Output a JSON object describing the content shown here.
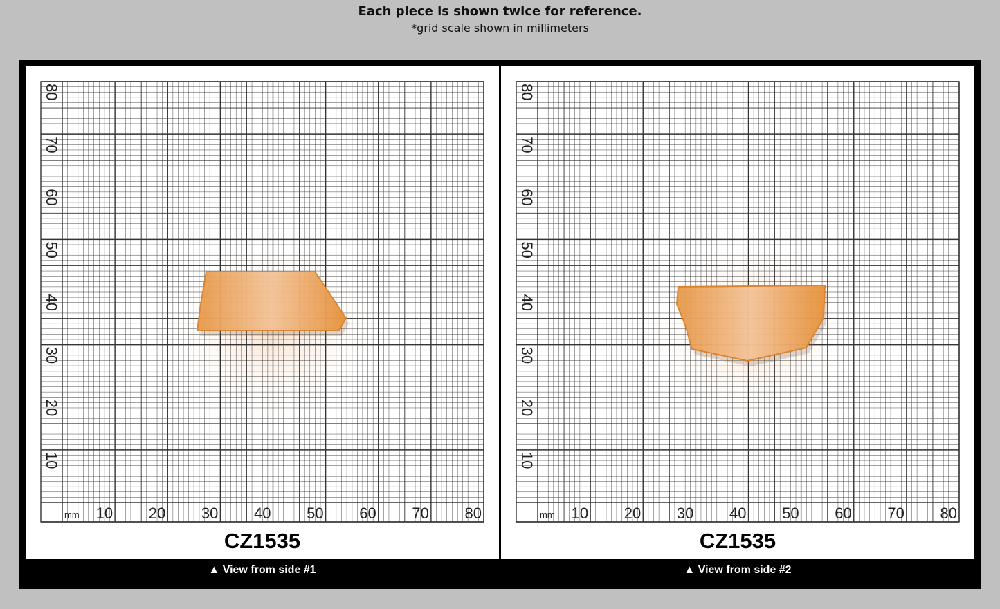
{
  "header": {
    "title": "Each piece is shown twice for reference.",
    "subtitle": "*grid scale shown in millimeters"
  },
  "panels": [
    {
      "unit": "mm",
      "x_scale": [
        10,
        20,
        30,
        40,
        50,
        60,
        70,
        80
      ],
      "y_scale": [
        10,
        20,
        30,
        40,
        50,
        60,
        70,
        80
      ],
      "code": "CZ1535",
      "caption": "▲ View from side #1"
    },
    {
      "unit": "mm",
      "x_scale": [
        10,
        20,
        30,
        40,
        50,
        60,
        70,
        80
      ],
      "y_scale": [
        10,
        20,
        30,
        40,
        50,
        60,
        70,
        80
      ],
      "code": "CZ1535",
      "caption": "▲ View from side #2"
    }
  ]
}
